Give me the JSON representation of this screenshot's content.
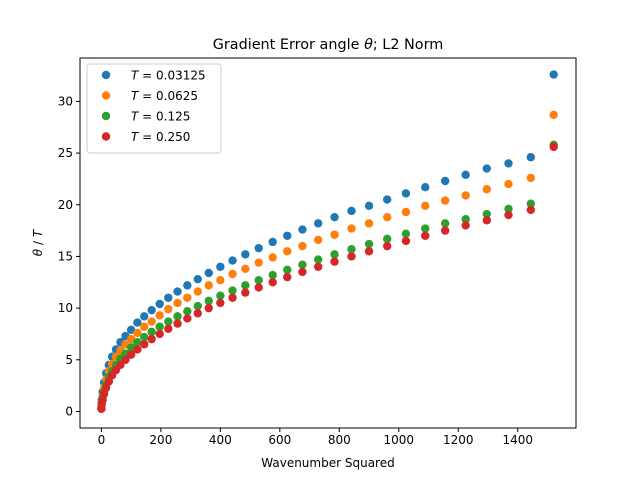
{
  "chart_data": {
    "type": "scatter",
    "title_prefix": "Gradient Error angle ",
    "title_symbol": "θ",
    "title_suffix": "; L2 Norm",
    "xlabel": "Wavenumber Squared",
    "ylabel_symbol_1": "θ",
    "ylabel_sep": " / ",
    "ylabel_symbol_2": "T",
    "xlim": [
      -72,
      1596
    ],
    "ylim": [
      -1.6,
      34.2
    ],
    "xticks": [
      0,
      200,
      400,
      600,
      800,
      1000,
      1200,
      1400
    ],
    "yticks": [
      0,
      5,
      10,
      15,
      20,
      25,
      30
    ],
    "grid": false,
    "legend_position": "top-left",
    "x": [
      0,
      1,
      4,
      9,
      16,
      25,
      36,
      49,
      64,
      81,
      100,
      121,
      144,
      169,
      196,
      225,
      256,
      289,
      324,
      361,
      400,
      441,
      484,
      529,
      576,
      625,
      676,
      729,
      784,
      841,
      900,
      961,
      1024,
      1089,
      1156,
      1225,
      1296,
      1369,
      1444,
      1521
    ],
    "series": [
      {
        "name_symbol": "T",
        "name_value": " = 0.03125",
        "color": "#1f77b4",
        "values": [
          0.4,
          1.1,
          1.9,
          2.8,
          3.7,
          4.5,
          5.3,
          6.0,
          6.7,
          7.3,
          7.9,
          8.6,
          9.2,
          9.8,
          10.4,
          11.0,
          11.6,
          12.2,
          12.8,
          13.4,
          14.0,
          14.6,
          15.2,
          15.8,
          16.4,
          17.0,
          17.6,
          18.2,
          18.8,
          19.4,
          19.9,
          20.5,
          21.1,
          21.7,
          22.3,
          22.9,
          23.5,
          24.0,
          24.6,
          32.6
        ]
      },
      {
        "name_symbol": "T",
        "name_value": " = 0.0625",
        "color": "#ff7f0e",
        "values": [
          0.35,
          0.9,
          1.5,
          2.3,
          3.1,
          3.9,
          4.6,
          5.3,
          5.9,
          6.5,
          7.0,
          7.6,
          8.2,
          8.7,
          9.3,
          9.9,
          10.5,
          11.0,
          11.6,
          12.2,
          12.7,
          13.3,
          13.8,
          14.4,
          14.9,
          15.5,
          16.0,
          16.6,
          17.1,
          17.7,
          18.2,
          18.8,
          19.3,
          19.9,
          20.4,
          20.9,
          21.5,
          22.0,
          22.6,
          28.7
        ]
      },
      {
        "name_symbol": "T",
        "name_value": " = 0.125",
        "color": "#2ca02c",
        "values": [
          0.3,
          0.8,
          1.3,
          1.9,
          2.6,
          3.3,
          3.9,
          4.5,
          5.1,
          5.6,
          6.2,
          6.7,
          7.2,
          7.7,
          8.2,
          8.7,
          9.2,
          9.7,
          10.2,
          10.7,
          11.2,
          11.7,
          12.2,
          12.7,
          13.2,
          13.7,
          14.2,
          14.7,
          15.2,
          15.7,
          16.2,
          16.7,
          17.2,
          17.7,
          18.2,
          18.6,
          19.1,
          19.6,
          20.1,
          25.8
        ]
      },
      {
        "name_symbol": "T",
        "name_value": " = 0.250",
        "color": "#d62728",
        "values": [
          0.25,
          0.7,
          1.1,
          1.7,
          2.3,
          2.9,
          3.5,
          4.0,
          4.5,
          5.0,
          5.5,
          6.0,
          6.5,
          7.0,
          7.5,
          8.0,
          8.5,
          9.0,
          9.5,
          10.0,
          10.5,
          11.0,
          11.5,
          12.0,
          12.5,
          13.0,
          13.5,
          14.0,
          14.5,
          15.0,
          15.5,
          16.0,
          16.5,
          17.0,
          17.5,
          18.0,
          18.5,
          19.0,
          19.5,
          25.6
        ]
      }
    ]
  }
}
